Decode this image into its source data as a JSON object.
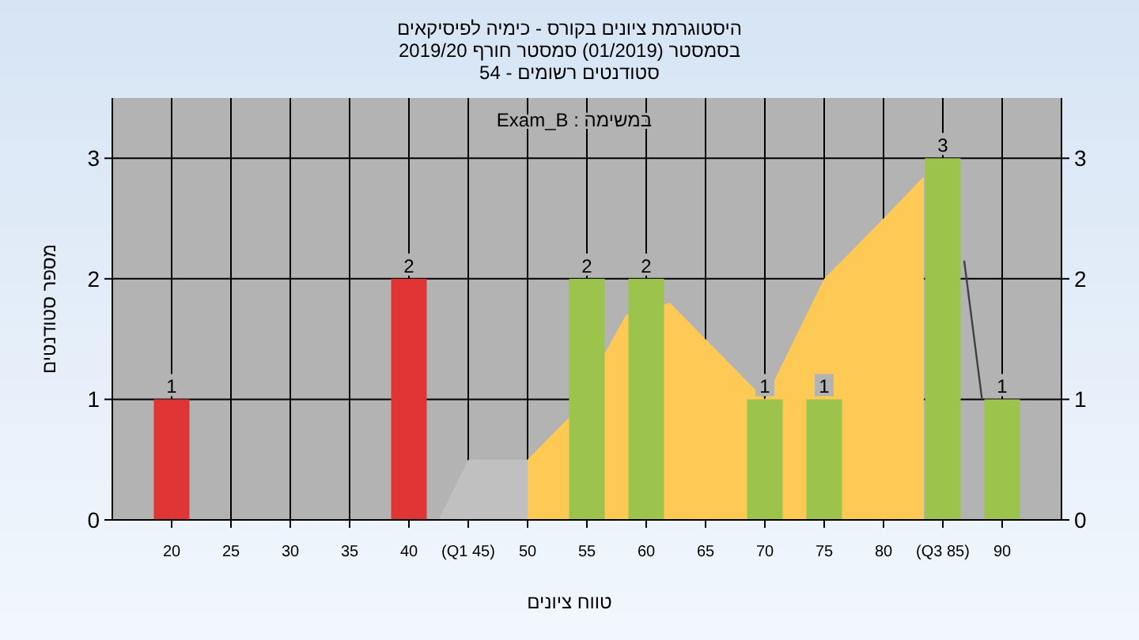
{
  "chart_data": {
    "type": "bar",
    "title": "היסטוגרמת ציונים בקורס - כימיה לפיסיקאים",
    "subtitle": "בסמסטר  (01/2019)  סמסטר חורף 2019/20",
    "annotations": [
      "סטודנטים רשומים - 54",
      "במשימה : Exam_B"
    ],
    "xlabel": "טווח ציונים",
    "ylabel": "מספר סטודנטים",
    "xlim": [
      15,
      95
    ],
    "xticks": [
      20,
      25,
      30,
      35,
      40,
      {
        "value": 45,
        "label": "(Q1 45)"
      },
      50,
      55,
      60,
      65,
      70,
      75,
      80,
      {
        "value": 85,
        "label": "(Q3 85)"
      },
      90
    ],
    "ylim": [
      0,
      3.5
    ],
    "yticks": [
      0,
      1,
      2,
      3
    ],
    "y2lim": [
      0,
      3.5
    ],
    "y2ticks": [
      0,
      1,
      2,
      3
    ],
    "grid": true,
    "series": [
      {
        "type": "area",
        "color": "#c0c0c0",
        "x": [
          42.5,
          45,
          50
        ],
        "values": [
          0,
          0.5,
          0.5
        ]
      },
      {
        "type": "area",
        "color": "#ffc955",
        "x": [
          50,
          53.5,
          58.3,
          62,
          65,
          70,
          75,
          80,
          83.4
        ],
        "values": [
          0.5,
          0.85,
          1.7,
          1.8,
          1.5,
          1.0,
          2.0,
          2.5,
          2.85
        ]
      },
      {
        "type": "line",
        "color": "#404040",
        "x": [
          86.8,
          88.3
        ],
        "values": [
          2.15,
          1.0
        ]
      },
      {
        "x": [
          20,
          40,
          55,
          60,
          70,
          75,
          85,
          90
        ],
        "values": [
          1,
          2,
          2,
          2,
          1,
          1,
          3,
          1
        ],
        "value_labels": [
          "1",
          "2",
          "2",
          "2",
          "1",
          "1",
          "3",
          "1"
        ],
        "colors": [
          "#e03535",
          "#e03535",
          "#9cc44c",
          "#9cc44c",
          "#9cc44c",
          "#9cc44c",
          "#9cc44c",
          "#9cc44c"
        ]
      }
    ]
  }
}
